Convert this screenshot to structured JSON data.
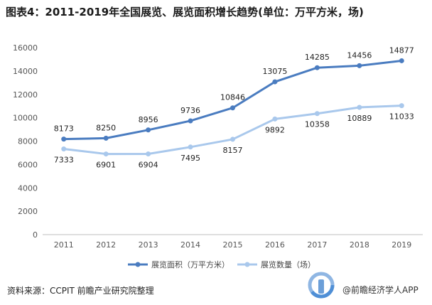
{
  "header": {
    "title": "图表4：2011-2019年全国展览、展览面积增长趋势(单位：万平方米，场)"
  },
  "chart_data": {
    "type": "line",
    "title": "图表4：2011-2019年全国展览、展览面积增长趋势(单位：万平方米，场)",
    "xlabel": "",
    "ylabel": "",
    "categories": [
      "2011",
      "2012",
      "2013",
      "2014",
      "2015",
      "2016",
      "2017",
      "2018",
      "2019"
    ],
    "ylim": [
      0,
      16000
    ],
    "yticks": [
      0,
      2000,
      4000,
      6000,
      8000,
      10000,
      12000,
      14000,
      16000
    ],
    "grid": false,
    "legend_position": "bottom",
    "series": [
      {
        "name": "展览面积（万平方米）",
        "values": [
          8173,
          8250,
          8956,
          9736,
          10846,
          13075,
          14285,
          14456,
          14877
        ],
        "color": "#4a7cc0",
        "label_position": "above"
      },
      {
        "name": "展览数量（场）",
        "values": [
          7333,
          6901,
          6904,
          7495,
          8157,
          9892,
          10358,
          10889,
          11033
        ],
        "color": "#a9c8ec",
        "label_position": "below"
      }
    ]
  },
  "footer": {
    "source": "资料来源：CCPIT 前瞻产业研究院整理"
  },
  "brand": {
    "text": "@前瞻经济学人APP"
  },
  "colors": {
    "axis": "#bfbfbf",
    "tick_text": "#555555",
    "label_text": "#222222"
  }
}
